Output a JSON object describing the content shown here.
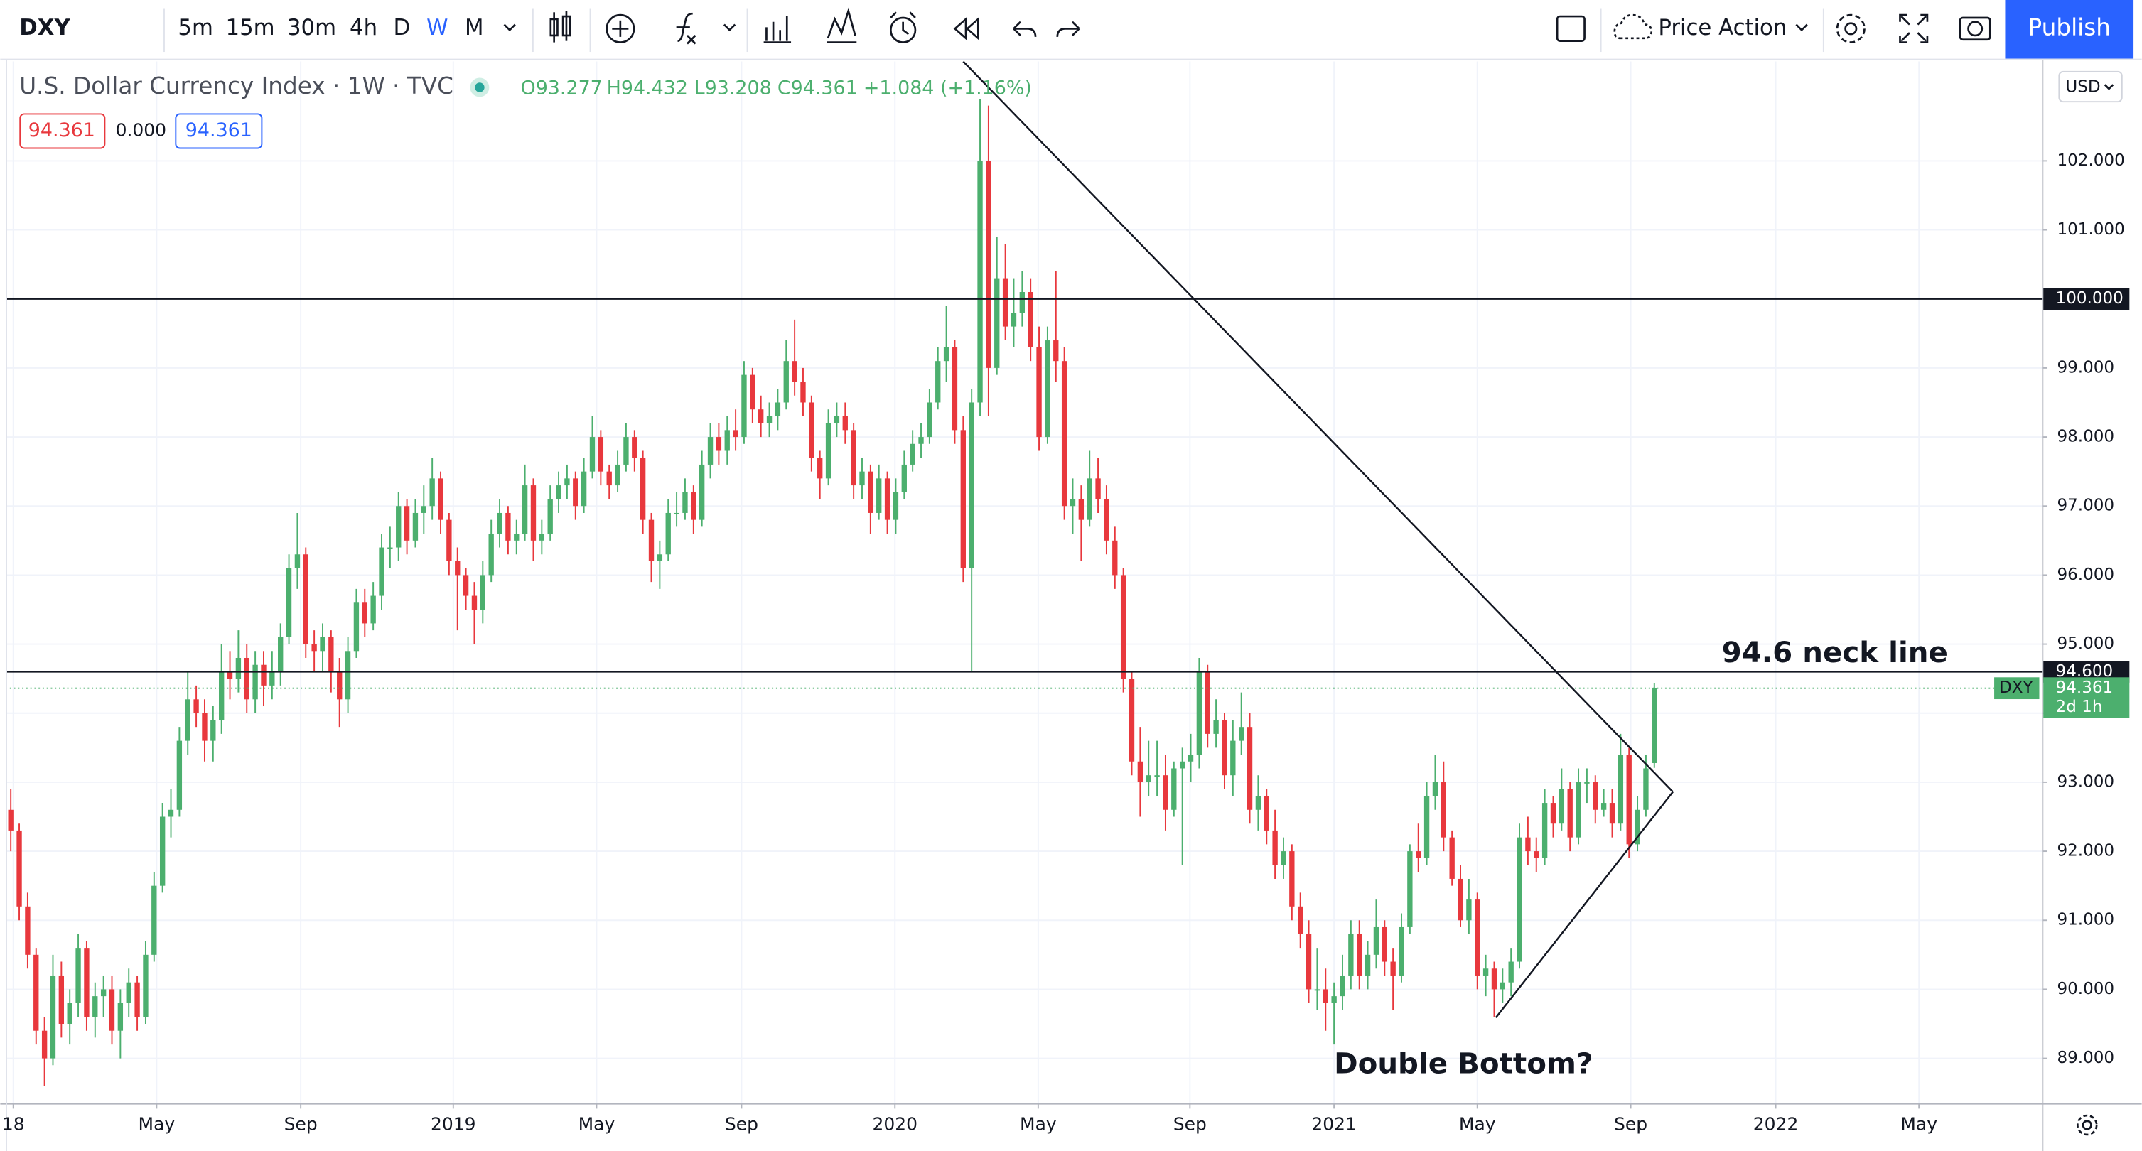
{
  "toolbar": {
    "symbol": "DXY",
    "intervals": [
      "5m",
      "15m",
      "30m",
      "4h",
      "D",
      "W",
      "M"
    ],
    "active_interval": 5,
    "layout_name": "Price Action",
    "publish": "Publish"
  },
  "legend": {
    "title": "U.S. Dollar Currency Index · 1W · TVC",
    "ohlc": [
      "O93.277",
      "H94.432",
      "L93.208",
      "C94.361",
      "+1.084 (+1.16%)"
    ],
    "bid": "94.361",
    "spread": "0.000",
    "ask": "94.361",
    "currency": "USD"
  },
  "chart_data": {
    "type": "candlestick",
    "up_color": "#4caf6e",
    "down_color": "#e8383d",
    "xlim": [
      -0.6,
      241.0
    ],
    "ylim": [
      88.35,
      103.44
    ],
    "xticks": [
      {
        "value": 0.3,
        "label": "18"
      },
      {
        "value": 17.3,
        "label": "May"
      },
      {
        "value": 34.4,
        "label": "Sep"
      },
      {
        "value": 52.5,
        "label": "2019"
      },
      {
        "value": 69.5,
        "label": "May"
      },
      {
        "value": 86.7,
        "label": "Sep"
      },
      {
        "value": 104.9,
        "label": "2020"
      },
      {
        "value": 121.9,
        "label": "May"
      },
      {
        "value": 139.9,
        "label": "Sep"
      },
      {
        "value": 157,
        "label": "2021"
      },
      {
        "value": 174,
        "label": "May"
      },
      {
        "value": 192.2,
        "label": "Sep"
      },
      {
        "value": 209.4,
        "label": "2022"
      },
      {
        "value": 226.4,
        "label": "May"
      }
    ],
    "yticks": [
      {
        "value": 89,
        "label": "89.000"
      },
      {
        "value": 90,
        "label": "90.000"
      },
      {
        "value": 91,
        "label": "91.000"
      },
      {
        "value": 92,
        "label": "92.000"
      },
      {
        "value": 93,
        "label": "93.000"
      },
      {
        "value": 94,
        "label": "94.000"
      },
      {
        "value": 95,
        "label": "95.000"
      },
      {
        "value": 96,
        "label": "96.000"
      },
      {
        "value": 97,
        "label": "97.000"
      },
      {
        "value": 98,
        "label": "98.000"
      },
      {
        "value": 99,
        "label": "99.000"
      },
      {
        "value": 100,
        "label": "100.000"
      },
      {
        "value": 101,
        "label": "101.000"
      },
      {
        "value": 102,
        "label": "102.000"
      }
    ],
    "grid": true,
    "hlines": [
      {
        "value": 100,
        "label": "100.000"
      },
      {
        "value": 94.6,
        "label": "94.600"
      }
    ],
    "trendlines": [
      [
        113,
        103.44,
        197.2,
        92.86
      ],
      [
        176.2,
        89.59,
        197.2,
        92.86
      ]
    ],
    "last_price": {
      "value": 94.361,
      "label": "94.361",
      "symbol": "DXY",
      "countdown": "2d 1h"
    },
    "annotations": [
      {
        "text": "94.6 neck line",
        "x": 203,
        "y": 94.85
      },
      {
        "text": "Double Bottom?",
        "x": 157,
        "y": 88.9
      }
    ],
    "candles": [
      [
        92.6,
        92.9,
        92.0,
        92.3
      ],
      [
        92.3,
        92.4,
        91.0,
        91.2
      ],
      [
        91.2,
        91.4,
        90.3,
        90.5
      ],
      [
        90.5,
        90.6,
        89.2,
        89.4
      ],
      [
        89.4,
        89.6,
        88.6,
        89.0
      ],
      [
        89.0,
        90.5,
        88.9,
        90.2
      ],
      [
        90.2,
        90.4,
        89.3,
        89.5
      ],
      [
        89.5,
        90.0,
        89.2,
        89.8
      ],
      [
        89.8,
        90.8,
        89.6,
        90.6
      ],
      [
        90.6,
        90.7,
        89.4,
        89.6
      ],
      [
        89.6,
        90.1,
        89.3,
        89.9
      ],
      [
        89.9,
        90.2,
        89.6,
        90.0
      ],
      [
        90.0,
        90.2,
        89.2,
        89.4
      ],
      [
        89.4,
        90.0,
        89.0,
        89.8
      ],
      [
        89.8,
        90.3,
        89.6,
        90.1
      ],
      [
        90.1,
        90.2,
        89.4,
        89.6
      ],
      [
        89.6,
        90.7,
        89.5,
        90.5
      ],
      [
        90.5,
        91.7,
        90.4,
        91.5
      ],
      [
        91.5,
        92.7,
        91.4,
        92.5
      ],
      [
        92.5,
        92.9,
        92.2,
        92.6
      ],
      [
        92.6,
        93.8,
        92.5,
        93.6
      ],
      [
        93.6,
        94.6,
        93.4,
        94.2
      ],
      [
        94.2,
        94.4,
        93.8,
        94.0
      ],
      [
        94.0,
        94.2,
        93.3,
        93.6
      ],
      [
        93.6,
        94.1,
        93.3,
        93.9
      ],
      [
        93.9,
        95.0,
        93.7,
        94.6
      ],
      [
        94.6,
        94.9,
        94.2,
        94.5
      ],
      [
        94.5,
        95.2,
        94.3,
        94.8
      ],
      [
        94.8,
        95.0,
        94.0,
        94.2
      ],
      [
        94.2,
        94.9,
        94.0,
        94.7
      ],
      [
        94.7,
        94.9,
        94.1,
        94.4
      ],
      [
        94.4,
        94.9,
        94.2,
        94.6
      ],
      [
        94.6,
        95.3,
        94.4,
        95.1
      ],
      [
        95.1,
        96.3,
        95.0,
        96.1
      ],
      [
        96.1,
        96.9,
        95.8,
        96.3
      ],
      [
        96.3,
        96.4,
        94.8,
        95.0
      ],
      [
        95.0,
        95.2,
        94.6,
        94.9
      ],
      [
        94.9,
        95.3,
        94.6,
        95.1
      ],
      [
        95.1,
        95.2,
        94.3,
        94.6
      ],
      [
        94.6,
        94.8,
        93.8,
        94.2
      ],
      [
        94.2,
        95.1,
        94.0,
        94.9
      ],
      [
        94.9,
        95.8,
        94.8,
        95.6
      ],
      [
        95.6,
        95.8,
        95.1,
        95.3
      ],
      [
        95.3,
        95.9,
        95.2,
        95.7
      ],
      [
        95.7,
        96.6,
        95.5,
        96.4
      ],
      [
        96.4,
        96.7,
        96.1,
        96.4
      ],
      [
        96.4,
        97.2,
        96.2,
        97.0
      ],
      [
        97.0,
        97.1,
        96.3,
        96.5
      ],
      [
        96.5,
        97.1,
        96.4,
        96.9
      ],
      [
        96.9,
        97.3,
        96.6,
        97.0
      ],
      [
        97.0,
        97.7,
        96.8,
        97.4
      ],
      [
        97.4,
        97.5,
        96.6,
        96.8
      ],
      [
        96.8,
        96.9,
        96.0,
        96.2
      ],
      [
        96.2,
        96.4,
        95.2,
        96.0
      ],
      [
        96.0,
        96.1,
        95.5,
        95.7
      ],
      [
        95.7,
        95.9,
        95.0,
        95.5
      ],
      [
        95.5,
        96.2,
        95.3,
        96.0
      ],
      [
        96.0,
        96.8,
        95.9,
        96.6
      ],
      [
        96.6,
        97.1,
        96.4,
        96.9
      ],
      [
        96.9,
        97.0,
        96.3,
        96.5
      ],
      [
        96.5,
        96.8,
        96.3,
        96.6
      ],
      [
        96.6,
        97.6,
        96.5,
        97.3
      ],
      [
        97.3,
        97.4,
        96.2,
        96.5
      ],
      [
        96.5,
        96.8,
        96.3,
        96.6
      ],
      [
        96.6,
        97.3,
        96.5,
        97.1
      ],
      [
        97.1,
        97.5,
        96.9,
        97.3
      ],
      [
        97.3,
        97.6,
        97.1,
        97.4
      ],
      [
        97.4,
        97.5,
        96.8,
        97.0
      ],
      [
        97.0,
        97.7,
        96.9,
        97.5
      ],
      [
        97.5,
        98.3,
        97.4,
        98.0
      ],
      [
        98.0,
        98.1,
        97.3,
        97.5
      ],
      [
        97.5,
        97.6,
        97.1,
        97.3
      ],
      [
        97.3,
        97.8,
        97.2,
        97.6
      ],
      [
        97.6,
        98.2,
        97.5,
        98.0
      ],
      [
        98.0,
        98.1,
        97.5,
        97.7
      ],
      [
        97.7,
        97.8,
        96.6,
        96.8
      ],
      [
        96.8,
        96.9,
        95.9,
        96.2
      ],
      [
        96.2,
        96.5,
        95.8,
        96.3
      ],
      [
        96.3,
        97.1,
        96.2,
        96.9
      ],
      [
        96.9,
        97.2,
        96.7,
        96.9
      ],
      [
        96.9,
        97.4,
        96.8,
        97.2
      ],
      [
        97.2,
        97.3,
        96.6,
        96.8
      ],
      [
        96.8,
        97.8,
        96.7,
        97.6
      ],
      [
        97.6,
        98.2,
        97.4,
        98.0
      ],
      [
        98.0,
        98.2,
        97.6,
        97.8
      ],
      [
        97.8,
        98.3,
        97.6,
        98.1
      ],
      [
        98.1,
        98.4,
        97.8,
        98.0
      ],
      [
        98.0,
        99.1,
        97.9,
        98.9
      ],
      [
        98.9,
        99.0,
        98.2,
        98.4
      ],
      [
        98.4,
        98.6,
        98.0,
        98.2
      ],
      [
        98.2,
        98.5,
        98.0,
        98.3
      ],
      [
        98.3,
        98.7,
        98.1,
        98.5
      ],
      [
        98.5,
        99.4,
        98.4,
        99.1
      ],
      [
        99.1,
        99.7,
        98.6,
        98.8
      ],
      [
        98.8,
        99.0,
        98.3,
        98.5
      ],
      [
        98.5,
        98.6,
        97.5,
        97.7
      ],
      [
        97.7,
        97.8,
        97.1,
        97.4
      ],
      [
        97.4,
        98.4,
        97.3,
        98.2
      ],
      [
        98.2,
        98.5,
        98.0,
        98.3
      ],
      [
        98.3,
        98.5,
        97.9,
        98.1
      ],
      [
        98.1,
        98.2,
        97.1,
        97.3
      ],
      [
        97.3,
        97.7,
        97.1,
        97.5
      ],
      [
        97.5,
        97.6,
        96.6,
        96.9
      ],
      [
        96.9,
        97.6,
        96.8,
        97.4
      ],
      [
        97.4,
        97.5,
        96.6,
        96.8
      ],
      [
        96.8,
        97.4,
        96.6,
        97.2
      ],
      [
        97.2,
        97.8,
        97.1,
        97.6
      ],
      [
        97.6,
        98.1,
        97.5,
        97.9
      ],
      [
        97.9,
        98.2,
        97.7,
        98.0
      ],
      [
        98.0,
        98.7,
        97.9,
        98.5
      ],
      [
        98.5,
        99.3,
        98.4,
        99.1
      ],
      [
        99.1,
        99.9,
        98.8,
        99.3
      ],
      [
        99.3,
        99.4,
        97.9,
        98.1
      ],
      [
        98.1,
        98.3,
        95.9,
        96.1
      ],
      [
        96.1,
        98.7,
        94.6,
        98.5
      ],
      [
        98.5,
        102.9,
        98.3,
        102.0
      ],
      [
        102.0,
        102.8,
        98.3,
        99.0
      ],
      [
        99.0,
        100.9,
        98.9,
        100.3
      ],
      [
        100.3,
        100.8,
        99.4,
        99.6
      ],
      [
        99.6,
        100.3,
        99.3,
        99.8
      ],
      [
        99.8,
        100.4,
        99.6,
        100.1
      ],
      [
        100.1,
        100.3,
        99.1,
        99.3
      ],
      [
        99.3,
        99.6,
        97.8,
        98.0
      ],
      [
        98.0,
        99.6,
        97.9,
        99.4
      ],
      [
        99.4,
        100.4,
        98.8,
        99.1
      ],
      [
        99.1,
        99.3,
        96.8,
        97.0
      ],
      [
        97.0,
        97.4,
        96.6,
        97.1
      ],
      [
        97.1,
        97.3,
        96.2,
        96.8
      ],
      [
        96.8,
        97.8,
        96.7,
        97.4
      ],
      [
        97.4,
        97.7,
        96.9,
        97.1
      ],
      [
        97.1,
        97.3,
        96.3,
        96.5
      ],
      [
        96.5,
        96.7,
        95.8,
        96.0
      ],
      [
        96.0,
        96.1,
        94.3,
        94.5
      ],
      [
        94.5,
        94.6,
        93.1,
        93.3
      ],
      [
        93.3,
        93.8,
        92.5,
        93.0
      ],
      [
        93.0,
        93.6,
        92.8,
        93.1
      ],
      [
        93.1,
        93.6,
        92.8,
        93.1
      ],
      [
        93.1,
        93.4,
        92.3,
        92.6
      ],
      [
        92.6,
        93.3,
        92.5,
        93.2
      ],
      [
        93.2,
        93.5,
        91.8,
        93.3
      ],
      [
        93.3,
        93.7,
        93.0,
        93.4
      ],
      [
        93.4,
        94.8,
        93.2,
        94.6
      ],
      [
        94.6,
        94.7,
        93.5,
        93.7
      ],
      [
        93.7,
        94.2,
        93.5,
        93.9
      ],
      [
        93.9,
        94.0,
        92.9,
        93.1
      ],
      [
        93.1,
        93.9,
        92.8,
        93.6
      ],
      [
        93.6,
        94.3,
        93.4,
        93.8
      ],
      [
        93.8,
        94.0,
        92.4,
        92.6
      ],
      [
        92.6,
        93.1,
        92.3,
        92.8
      ],
      [
        92.8,
        92.9,
        92.1,
        92.3
      ],
      [
        92.3,
        92.6,
        91.6,
        91.8
      ],
      [
        91.8,
        92.2,
        91.6,
        92.0
      ],
      [
        92.0,
        92.1,
        91.0,
        91.2
      ],
      [
        91.2,
        91.4,
        90.6,
        90.8
      ],
      [
        90.8,
        91.0,
        89.8,
        90.0
      ],
      [
        90.0,
        90.6,
        89.7,
        90.0
      ],
      [
        90.0,
        90.3,
        89.4,
        89.8
      ],
      [
        89.8,
        90.1,
        89.2,
        89.9
      ],
      [
        89.9,
        90.5,
        89.7,
        90.2
      ],
      [
        90.2,
        91.0,
        90.0,
        90.8
      ],
      [
        90.8,
        91.0,
        90.0,
        90.2
      ],
      [
        90.2,
        90.7,
        90.0,
        90.5
      ],
      [
        90.5,
        91.3,
        90.3,
        90.9
      ],
      [
        90.9,
        91.0,
        90.2,
        90.4
      ],
      [
        90.4,
        90.6,
        89.7,
        90.2
      ],
      [
        90.2,
        91.1,
        90.1,
        90.9
      ],
      [
        90.9,
        92.1,
        90.8,
        92.0
      ],
      [
        92.0,
        92.4,
        91.7,
        91.9
      ],
      [
        91.9,
        93.0,
        91.8,
        92.8
      ],
      [
        92.8,
        93.4,
        92.6,
        93.0
      ],
      [
        93.0,
        93.3,
        92.0,
        92.2
      ],
      [
        92.2,
        92.3,
        91.5,
        91.6
      ],
      [
        91.6,
        91.8,
        90.9,
        91.0
      ],
      [
        91.0,
        91.6,
        90.8,
        91.3
      ],
      [
        91.3,
        91.4,
        90.0,
        90.2
      ],
      [
        90.2,
        90.5,
        89.9,
        90.3
      ],
      [
        90.3,
        90.4,
        89.6,
        90.0
      ],
      [
        90.0,
        90.3,
        89.8,
        90.1
      ],
      [
        90.1,
        90.6,
        89.9,
        90.4
      ],
      [
        90.4,
        92.4,
        90.3,
        92.2
      ],
      [
        92.2,
        92.5,
        91.8,
        92.0
      ],
      [
        92.0,
        92.2,
        91.7,
        91.9
      ],
      [
        91.9,
        92.9,
        91.8,
        92.7
      ],
      [
        92.7,
        92.8,
        92.2,
        92.4
      ],
      [
        92.4,
        93.2,
        92.3,
        92.9
      ],
      [
        92.9,
        93.0,
        92.0,
        92.2
      ],
      [
        92.2,
        93.2,
        92.1,
        93.0
      ],
      [
        93.0,
        93.2,
        92.7,
        93.0
      ],
      [
        93.0,
        93.1,
        92.4,
        92.6
      ],
      [
        92.6,
        92.9,
        92.5,
        92.7
      ],
      [
        92.7,
        92.9,
        92.2,
        92.4
      ],
      [
        92.4,
        93.7,
        92.3,
        93.4
      ],
      [
        93.4,
        93.5,
        91.9,
        92.1
      ],
      [
        92.1,
        92.8,
        92.0,
        92.6
      ],
      [
        92.6,
        93.4,
        92.5,
        93.2
      ],
      [
        93.277,
        94.432,
        93.208,
        94.361
      ]
    ]
  }
}
